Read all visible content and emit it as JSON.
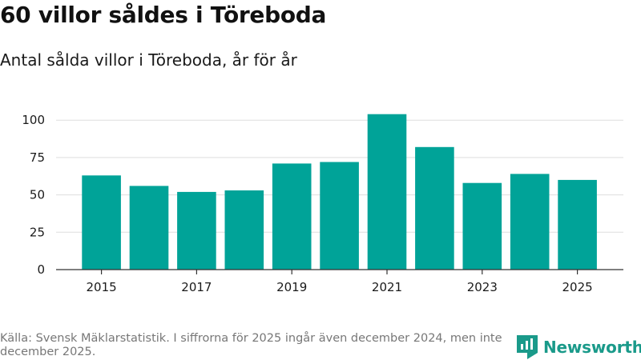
{
  "title": "60 villor såldes i Töreboda",
  "subtitle": "Antal sålda villor i Töreboda, år för år",
  "source": "Källa: Svensk Mäklarstatistik. I siffrorna för 2025 ingår även december 2024, men inte december 2025.",
  "logo": {
    "text": "Newsworthy",
    "icon": "newsworthy-chart-icon"
  },
  "colors": {
    "bar": "#00a398",
    "grid": "#dddddd",
    "axis": "#333333",
    "brand": "#1a9a8a"
  },
  "chart_data": {
    "type": "bar",
    "title": "60 villor såldes i Töreboda",
    "subtitle": "Antal sålda villor i Töreboda, år för år",
    "xlabel": "",
    "ylabel": "",
    "categories": [
      "2015",
      "2016",
      "2017",
      "2018",
      "2019",
      "2020",
      "2021",
      "2022",
      "2023",
      "2024",
      "2025"
    ],
    "values": [
      63,
      56,
      52,
      53,
      71,
      72,
      104,
      82,
      58,
      64,
      60
    ],
    "x_tick_labels": [
      "2015",
      "2017",
      "2019",
      "2021",
      "2023",
      "2025"
    ],
    "y_ticks": [
      0,
      25,
      50,
      75,
      100
    ],
    "y_tick_labels": [
      "0",
      "25",
      "50",
      "75",
      "100"
    ],
    "ylim": [
      0,
      112
    ],
    "grid": true
  }
}
